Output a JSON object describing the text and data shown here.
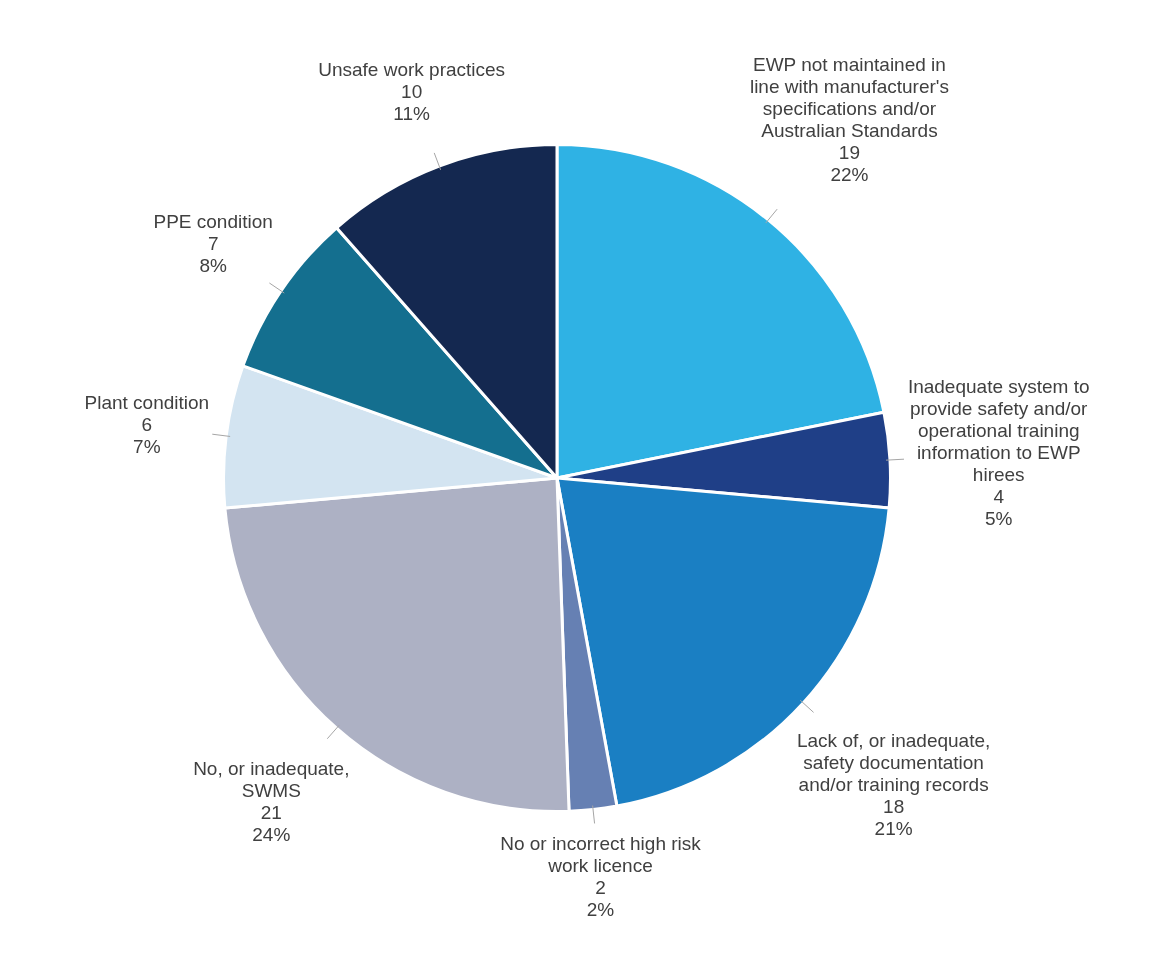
{
  "chart_data": {
    "type": "pie",
    "categories": [
      "EWP not maintained in line with manufacturer's specifications and/or Australian Standards",
      "Inadequate system to provide safety and/or operational training information to EWP hirees",
      "Lack of, or inadequate, safety documentation and/or training records",
      "No or incorrect high risk work licence",
      "No, or inadequate, SWMS",
      "Plant condition",
      "PPE condition",
      "Unsafe work practices"
    ],
    "values": [
      19,
      4,
      18,
      2,
      21,
      6,
      7,
      10
    ],
    "value_labels": [
      "19\n22%",
      "4\n5%",
      "18\n21%",
      "2\n2%",
      "21\n24%",
      "6\n7%",
      "7\n8%",
      "10\n11%"
    ],
    "colors": [
      "#2fb2e4",
      "#1f3f87",
      "#1a7fc3",
      "#6680b3",
      "#adb1c4",
      "#d3e4f1",
      "#146f8f",
      "#142850"
    ],
    "legend": false
  }
}
